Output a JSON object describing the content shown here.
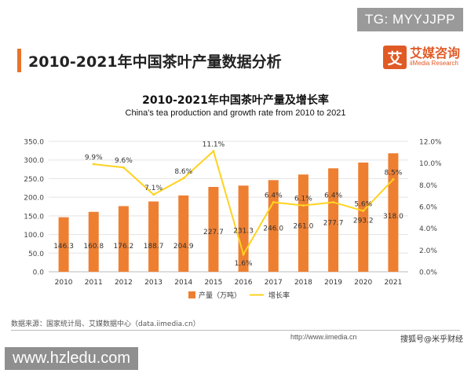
{
  "tag_top": "TG: MYYJJPP",
  "page_title": "2010-2021年中国茶叶产量数据分析",
  "logo": {
    "mark": "艾",
    "name_cn": "艾媒咨询",
    "name_en": "iiMedia Research"
  },
  "source_text": "数据来源：国家统计局、艾媒数据中心（data.iimedia.cn）",
  "footer": {
    "url": "http://www.iimedia.cn",
    "copyright": "搜狐号@米乎财经"
  },
  "watermark": "www.hzledu.com",
  "colors": {
    "bar": "#ee7f31",
    "line": "#ffd21f",
    "accent": "#e8732a"
  },
  "chart_data": {
    "type": "bar",
    "title": "2010-2021年中国茶叶产量及增长率",
    "subtitle": "China's tea production and growth rate from 2010 to 2021",
    "categories": [
      "2010",
      "2011",
      "2012",
      "2013",
      "2014",
      "2015",
      "2016",
      "2017",
      "2018",
      "2019",
      "2020",
      "2021"
    ],
    "series": [
      {
        "name": "产量（万吨）",
        "type": "bar",
        "axis": "left",
        "values": [
          146.3,
          160.8,
          176.2,
          188.7,
          204.9,
          227.7,
          231.3,
          246.0,
          261.0,
          277.7,
          293.2,
          318.0
        ],
        "labels": [
          "146.3",
          "160.8",
          "176.2",
          "188.7",
          "204.9",
          "227.7",
          "231.3",
          "246.0",
          "261.0",
          "277.7",
          "293.2",
          "318.0"
        ]
      },
      {
        "name": "增长率",
        "type": "line",
        "axis": "right",
        "values": [
          null,
          9.9,
          9.6,
          7.1,
          8.6,
          11.1,
          1.6,
          6.4,
          6.1,
          6.4,
          5.6,
          8.5
        ],
        "labels": [
          "",
          "9.9%",
          "9.6%",
          "7.1%",
          "8.6%",
          "11.1%",
          "1.6%",
          "6.4%",
          "6.1%",
          "6.4%",
          "5.6%",
          "8.5%"
        ]
      }
    ],
    "y_left": {
      "ylim": [
        0,
        350
      ],
      "ticks": [
        "0.0",
        "50.0",
        "100.0",
        "150.0",
        "200.0",
        "250.0",
        "300.0",
        "350.0"
      ],
      "tick_values": [
        0,
        50,
        100,
        150,
        200,
        250,
        300,
        350
      ]
    },
    "y_right": {
      "ylim": [
        0,
        12
      ],
      "ticks": [
        "0.0%",
        "2.0%",
        "4.0%",
        "6.0%",
        "8.0%",
        "10.0%",
        "12.0%"
      ],
      "tick_values": [
        0,
        2,
        4,
        6,
        8,
        10,
        12
      ]
    },
    "legend": [
      "产量（万吨）",
      "增长率"
    ],
    "legend_position": "bottom-center",
    "grid": true
  }
}
